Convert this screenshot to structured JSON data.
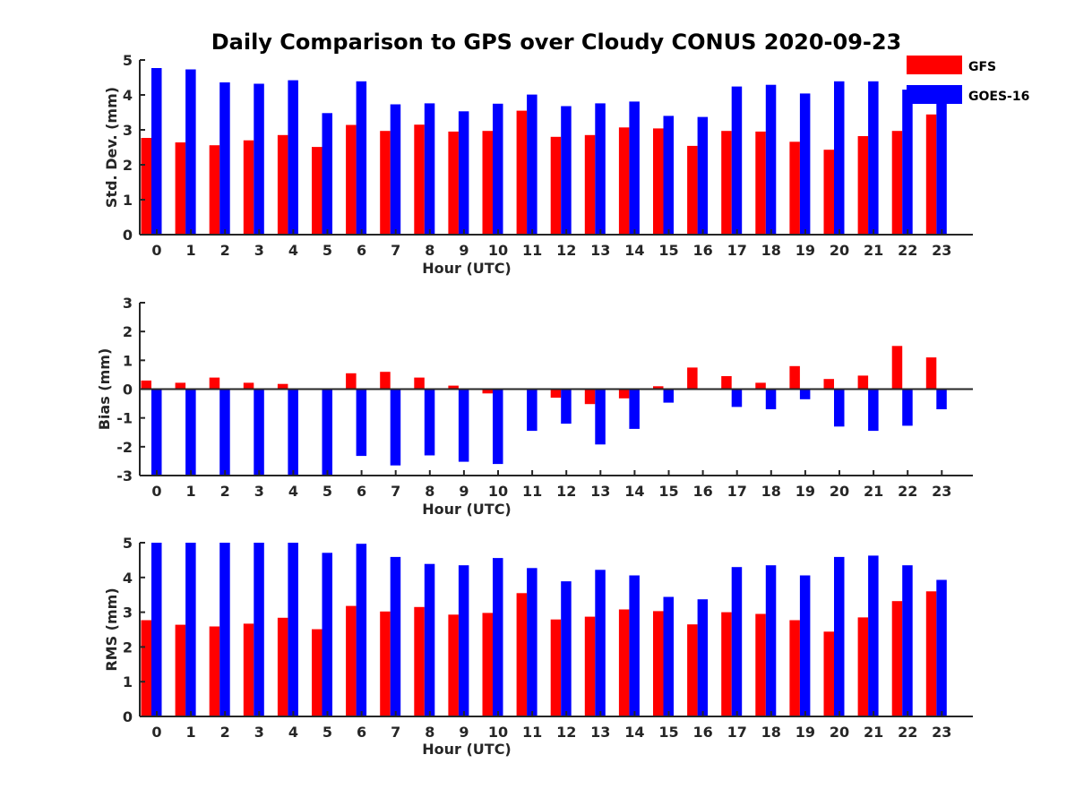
{
  "title": "Daily Comparison to GPS over Cloudy CONUS 2020-09-23",
  "colors": {
    "GFS": "#ff0000",
    "GOES-16": "#0000ff",
    "axis": "#262626"
  },
  "legend": {
    "placement": "top-right",
    "entries": [
      "GFS",
      "GOES-16"
    ]
  },
  "chart_data": [
    {
      "type": "bar",
      "xlabel": "Hour (UTC)",
      "ylabel": "Std. Dev. (mm)",
      "ylim": [
        0,
        5
      ],
      "yticks": [
        "0",
        "1",
        "2",
        "3",
        "4",
        "5"
      ],
      "categories": [
        "0",
        "1",
        "2",
        "3",
        "4",
        "5",
        "6",
        "7",
        "8",
        "9",
        "10",
        "11",
        "12",
        "13",
        "14",
        "15",
        "16",
        "17",
        "18",
        "19",
        "20",
        "21",
        "22",
        "23"
      ],
      "series": [
        {
          "name": "GFS",
          "values": [
            2.77,
            2.64,
            2.56,
            2.7,
            2.85,
            2.51,
            3.14,
            2.97,
            3.15,
            2.95,
            2.97,
            3.55,
            2.8,
            2.85,
            3.07,
            3.04,
            2.54,
            2.97,
            2.95,
            2.66,
            2.43,
            2.82,
            2.97,
            3.44
          ]
        },
        {
          "name": "GOES-16",
          "values": [
            4.77,
            4.73,
            4.36,
            4.32,
            4.42,
            3.48,
            4.39,
            3.73,
            3.76,
            3.53,
            3.75,
            4.01,
            3.68,
            3.76,
            3.81,
            3.4,
            3.37,
            4.24,
            4.29,
            4.04,
            4.39,
            4.39,
            4.15,
            3.9
          ]
        }
      ]
    },
    {
      "type": "bar",
      "xlabel": "Hour (UTC)",
      "ylabel": "Bias (mm)",
      "ylim": [
        -3,
        3
      ],
      "yticks": [
        "-3",
        "-2",
        "-1",
        "0",
        "1",
        "2",
        "3"
      ],
      "categories": [
        "0",
        "1",
        "2",
        "3",
        "4",
        "5",
        "6",
        "7",
        "8",
        "9",
        "10",
        "11",
        "12",
        "13",
        "14",
        "15",
        "16",
        "17",
        "18",
        "19",
        "20",
        "21",
        "22",
        "23"
      ],
      "series": [
        {
          "name": "GFS",
          "values": [
            0.3,
            0.22,
            0.4,
            0.22,
            0.18,
            0.03,
            0.55,
            0.6,
            0.4,
            0.12,
            -0.15,
            0.0,
            -0.3,
            -0.52,
            -0.32,
            0.1,
            0.75,
            0.45,
            0.22,
            0.8,
            0.35,
            0.47,
            1.5,
            1.1
          ]
        },
        {
          "name": "GOES-16",
          "values": [
            -3.0,
            -3.0,
            -3.0,
            -3.0,
            -2.97,
            -3.0,
            -2.32,
            -2.65,
            -2.3,
            -2.52,
            -2.6,
            -1.45,
            -1.2,
            -1.92,
            -1.38,
            -0.47,
            0.0,
            -0.62,
            -0.7,
            -0.35,
            -1.3,
            -1.45,
            -1.27,
            -0.7
          ]
        }
      ]
    },
    {
      "type": "bar",
      "xlabel": "Hour (UTC)",
      "ylabel": "RMS (mm)",
      "ylim": [
        0,
        5
      ],
      "yticks": [
        "0",
        "1",
        "2",
        "3",
        "4",
        "5"
      ],
      "categories": [
        "0",
        "1",
        "2",
        "3",
        "4",
        "5",
        "6",
        "7",
        "8",
        "9",
        "10",
        "11",
        "12",
        "13",
        "14",
        "15",
        "16",
        "17",
        "18",
        "19",
        "20",
        "21",
        "22",
        "23"
      ],
      "series": [
        {
          "name": "GFS",
          "values": [
            2.77,
            2.64,
            2.59,
            2.67,
            2.84,
            2.51,
            3.18,
            3.02,
            3.15,
            2.93,
            2.98,
            3.55,
            2.79,
            2.87,
            3.08,
            3.03,
            2.65,
            3.0,
            2.95,
            2.77,
            2.44,
            2.85,
            3.32,
            3.6
          ]
        },
        {
          "name": "GOES-16",
          "values": [
            5.0,
            5.0,
            5.0,
            5.0,
            5.0,
            4.71,
            4.97,
            4.59,
            4.39,
            4.35,
            4.56,
            4.27,
            3.89,
            4.22,
            4.06,
            3.44,
            3.37,
            4.3,
            4.35,
            4.06,
            4.59,
            4.63,
            4.35,
            3.93
          ]
        }
      ]
    }
  ]
}
